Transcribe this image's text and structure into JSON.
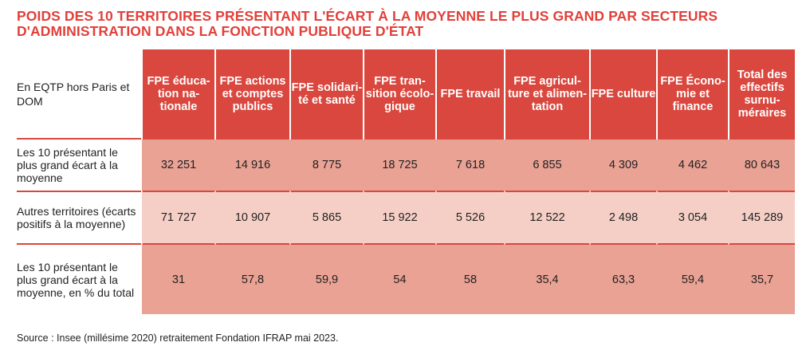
{
  "title": {
    "line1": "POIDS DES 10 TERRITOIRES PRÉSENTANT L'ÉCART À LA MOYENNE LE PLUS GRAND PAR SECTEURS",
    "line2": "D'ADMINISTRATION DANS LA FONCTION PUBLIQUE D'ÉTAT"
  },
  "table": {
    "corner": "En EQTP hors Paris et DOM",
    "headers": [
      "FPE éduca-tion na-tionale",
      "FPE actions et comptes publics",
      "FPE solidari-té et santé",
      "FPE tran-sition écolo-gique",
      "FPE travail",
      "FPE agricul-ture et alimen-tation",
      "FPE culture",
      "FPE Écono-mie et finance",
      "Total des effectifs surnu-méraires"
    ],
    "rows": [
      {
        "label": "Les 10 présentant le plus grand écart à la moyenne",
        "values": [
          "32 251",
          "14 916",
          "8 775",
          "18 725",
          "7 618",
          "6 855",
          "4 309",
          "4 462",
          "80 643"
        ]
      },
      {
        "label": "Autres territoires (écarts positifs à la moyenne)",
        "values": [
          "71 727",
          "10 907",
          "5 865",
          "15 922",
          "5 526",
          "12 522",
          "2 498",
          "3 054",
          "145 289"
        ]
      },
      {
        "label": "Les 10 présentant le plus grand écart à la moyenne, en % du total",
        "values": [
          "31",
          "57,8",
          "59,9",
          "54",
          "58",
          "35,4",
          "63,3",
          "59,4",
          "35,7"
        ]
      }
    ]
  },
  "source": "Source : Insee (millésime 2020) retraitement Fondation IFRAP mai 2023.",
  "colors": {
    "title": "#e2403a",
    "header_bg": "#d9473e",
    "row_dark": "#e9a294",
    "row_light": "#f5cfc6"
  }
}
